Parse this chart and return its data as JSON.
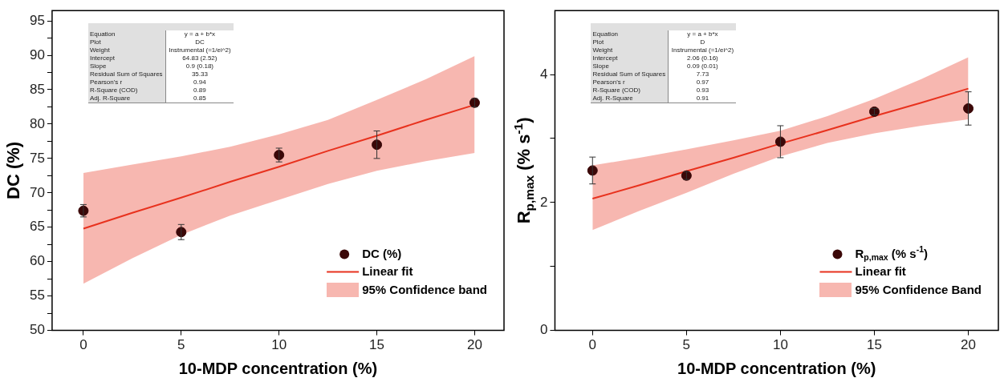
{
  "chart_data": [
    {
      "type": "scatter",
      "xlabel": "10-MDP concentration (%)",
      "ylabel": "DC (%)",
      "xlim": [
        -1.6,
        21.5
      ],
      "xticks": [
        0,
        5,
        10,
        15,
        20
      ],
      "ylim": [
        50,
        96.5
      ],
      "yticks": [
        50,
        {
          "value": 52.5,
          "label": null
        },
        55,
        {
          "value": 57.5,
          "label": null
        },
        60,
        {
          "value": 62.5,
          "label": null
        },
        65,
        {
          "value": 67.5,
          "label": null
        },
        70,
        {
          "value": 72.5,
          "label": null
        },
        75,
        {
          "value": 77.5,
          "label": null
        },
        80,
        {
          "value": 82.5,
          "label": null
        },
        85,
        {
          "value": 87.5,
          "label": null
        },
        90,
        {
          "value": 92.5,
          "label": null
        },
        95
      ],
      "grid": false,
      "legend": "bottom right",
      "annotations": [
        "95% Confidence band",
        "Equation",
        "y = a + b*x",
        "Plot",
        "DC",
        "Weight",
        "Instrumental (=1/ei^2)",
        "Intercept",
        "64.83  (2.52)",
        "Slope",
        "0.9  (0.18)",
        "Residual Sum of Squares",
        "35.33",
        "Pearson's r",
        "0.94",
        "R-Square (COD)",
        "0.89",
        "Adj. R-Square",
        "0.85"
      ],
      "series": [
        {
          "type": "scatter",
          "name": "DC (%)",
          "color": "#3b0808",
          "marker": "circle",
          "x": [
            0,
            5,
            10,
            15,
            20
          ],
          "values": [
            67.4,
            64.3,
            75.5,
            77.0,
            83.1
          ],
          "errors": [
            0.9,
            1.1,
            1.0,
            2.0,
            0.6
          ]
        },
        {
          "type": "line",
          "name": "Linear fit",
          "color": "#e8321e",
          "x": [
            0,
            2.5,
            5,
            7.5,
            10,
            12.5,
            15,
            17.5,
            20
          ],
          "values": [
            64.8,
            67.1,
            69.3,
            71.6,
            73.8,
            76.1,
            78.3,
            80.6,
            82.8
          ],
          "upper": [
            72.9,
            74.1,
            75.3,
            76.7,
            78.5,
            80.6,
            83.5,
            86.5,
            89.9
          ],
          "lower": [
            56.8,
            60.5,
            63.9,
            66.7,
            69.0,
            71.3,
            73.2,
            74.6,
            75.8
          ]
        }
      ]
    },
    {
      "type": "scatter",
      "xlabel": "10-MDP concentration (%)",
      "ylabel": "R$_{p,max}$ (% s$^{-1}$)",
      "xlim": [
        -2,
        21.6
      ],
      "xticks": [
        0,
        5,
        10,
        15,
        20
      ],
      "ylim": [
        0,
        5
      ],
      "yticks": [
        0,
        {
          "value": 1,
          "label": null
        },
        2,
        {
          "value": 3,
          "label": null
        },
        4
      ],
      "grid": false,
      "legend": "bottom right",
      "annotations": [
        "95% Confidence Band",
        "Equation",
        "y = a + b*x",
        "Plot",
        "D",
        "Weight",
        "Instrumental (=1/ei^2)",
        "Intercept",
        "2.06  (0.16)",
        "Slope",
        "0.09  (0.01)",
        "Residual Sum of Squares",
        "7.73",
        "Pearson's r",
        "0.97",
        "R-Square (COD)",
        "0.93",
        "Adj. R-Square",
        "0.91"
      ],
      "series": [
        {
          "type": "scatter",
          "name": "R$_{p,max}$ (% s$^{-1}$)",
          "color": "#3b0808",
          "marker": "circle",
          "x": [
            0,
            5,
            10,
            15,
            20
          ],
          "values": [
            2.5,
            2.42,
            2.95,
            3.42,
            3.47
          ],
          "errors": [
            0.21,
            0.06,
            0.25,
            0.05,
            0.26
          ]
        },
        {
          "type": "line",
          "name": "Linear fit",
          "color": "#e8321e",
          "x": [
            0,
            2.5,
            5,
            7.5,
            10,
            12.5,
            15,
            17.5,
            20
          ],
          "values": [
            2.06,
            2.27,
            2.49,
            2.7,
            2.92,
            3.13,
            3.35,
            3.56,
            3.78
          ],
          "upper": [
            2.58,
            2.7,
            2.83,
            2.97,
            3.12,
            3.35,
            3.62,
            3.93,
            4.27
          ],
          "lower": [
            1.57,
            1.87,
            2.15,
            2.45,
            2.72,
            2.93,
            3.08,
            3.2,
            3.3
          ]
        }
      ]
    }
  ]
}
